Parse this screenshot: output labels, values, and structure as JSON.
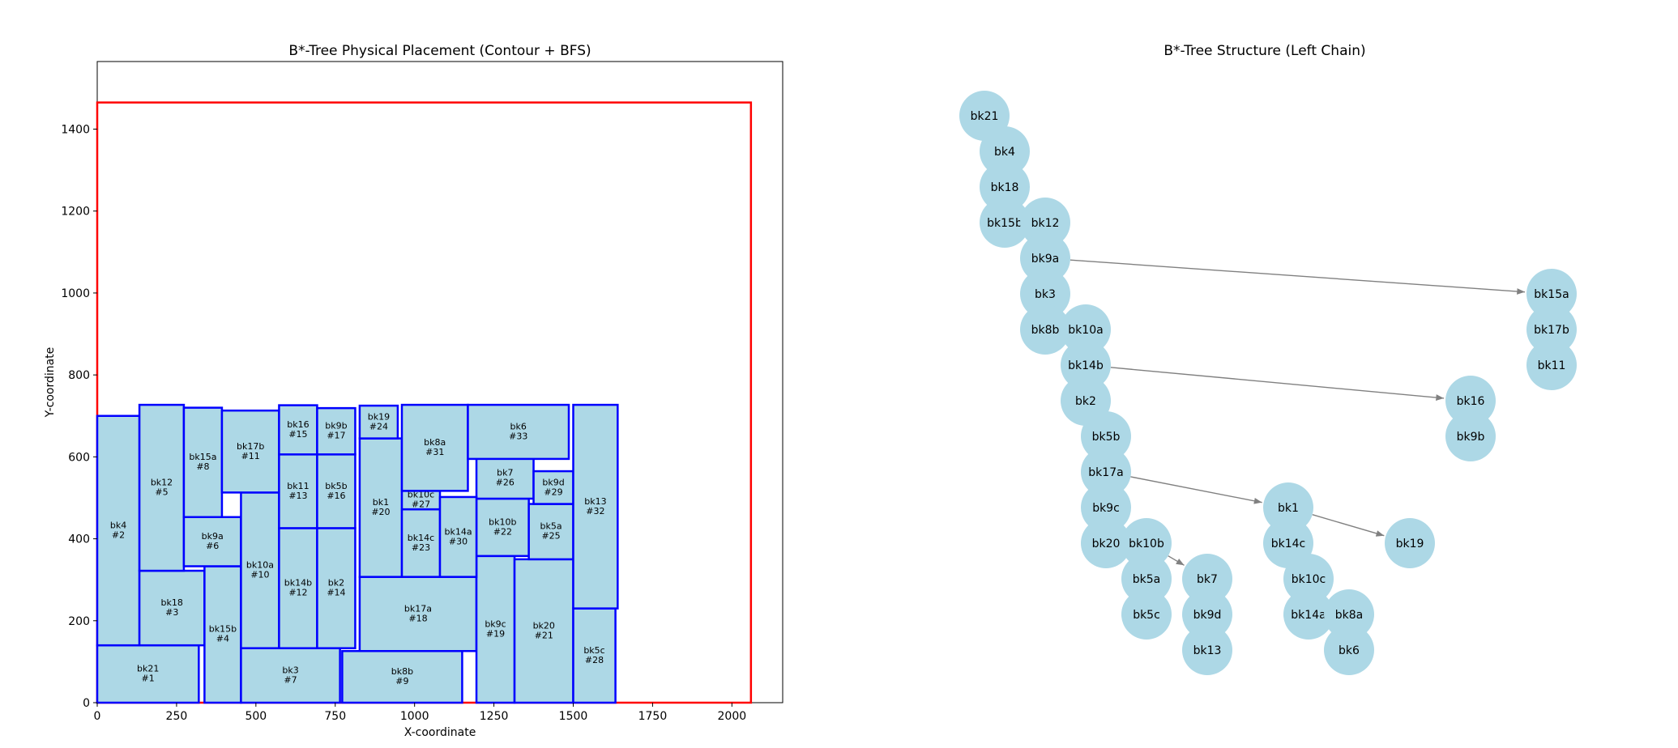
{
  "left": {
    "title": "B*-Tree Physical Placement (Contour + BFS)",
    "xlabel": "X-coordinate",
    "ylabel": "Y-coordinate",
    "xticks": [
      0,
      250,
      500,
      750,
      1000,
      1250,
      1500,
      1750,
      2000
    ],
    "yticks": [
      0,
      200,
      400,
      600,
      800,
      1000,
      1200,
      1400
    ],
    "xlim": [
      0,
      2160
    ],
    "ylim": [
      0,
      1565
    ],
    "outline": {
      "w": 2060,
      "h": 1465,
      "color": "#ff0000"
    },
    "block_fill": "#add8e6",
    "block_edge": "#0000ff",
    "blocks": [
      {
        "name": "bk21",
        "idx": "#1",
        "x": 0,
        "y": 0,
        "w": 320,
        "h": 140
      },
      {
        "name": "bk4",
        "idx": "#2",
        "x": 0,
        "y": 140,
        "w": 133,
        "h": 560
      },
      {
        "name": "bk18",
        "idx": "#3",
        "x": 133,
        "y": 140,
        "w": 205,
        "h": 182
      },
      {
        "name": "bk15b",
        "idx": "#4",
        "x": 338,
        "y": 0,
        "w": 115,
        "h": 333
      },
      {
        "name": "bk12",
        "idx": "#5",
        "x": 133,
        "y": 322,
        "w": 140,
        "h": 405
      },
      {
        "name": "bk9a",
        "idx": "#6",
        "x": 273,
        "y": 333,
        "w": 180,
        "h": 120
      },
      {
        "name": "bk3",
        "idx": "#7",
        "x": 453,
        "y": 0,
        "w": 312,
        "h": 133
      },
      {
        "name": "bk15a",
        "idx": "#8",
        "x": 273,
        "y": 453,
        "w": 120,
        "h": 267
      },
      {
        "name": "bk8b",
        "idx": "#9",
        "x": 772,
        "y": 0,
        "w": 378,
        "h": 126
      },
      {
        "name": "bk10a",
        "idx": "#10",
        "x": 453,
        "y": 133,
        "w": 120,
        "h": 380
      },
      {
        "name": "bk17b",
        "idx": "#11",
        "x": 393,
        "y": 513,
        "w": 180,
        "h": 200
      },
      {
        "name": "bk14b",
        "idx": "#12",
        "x": 573,
        "y": 133,
        "w": 120,
        "h": 293
      },
      {
        "name": "bk11",
        "idx": "#13",
        "x": 573,
        "y": 426,
        "w": 120,
        "h": 180
      },
      {
        "name": "bk2",
        "idx": "#14",
        "x": 693,
        "y": 133,
        "w": 120,
        "h": 293
      },
      {
        "name": "bk16",
        "idx": "#15",
        "x": 573,
        "y": 606,
        "w": 120,
        "h": 120
      },
      {
        "name": "bk5b",
        "idx": "#16",
        "x": 693,
        "y": 426,
        "w": 120,
        "h": 180
      },
      {
        "name": "bk9b",
        "idx": "#17",
        "x": 693,
        "y": 606,
        "w": 120,
        "h": 113
      },
      {
        "name": "bk17a",
        "idx": "#18",
        "x": 827,
        "y": 126,
        "w": 368,
        "h": 181
      },
      {
        "name": "bk9c",
        "idx": "#19",
        "x": 1195,
        "y": 0,
        "w": 120,
        "h": 358
      },
      {
        "name": "bk1",
        "idx": "#20",
        "x": 827,
        "y": 307,
        "w": 133,
        "h": 338
      },
      {
        "name": "bk20",
        "idx": "#21",
        "x": 1315,
        "y": 0,
        "w": 185,
        "h": 350
      },
      {
        "name": "bk10b",
        "idx": "#22",
        "x": 1195,
        "y": 358,
        "w": 165,
        "h": 140
      },
      {
        "name": "bk14c",
        "idx": "#23",
        "x": 960,
        "y": 307,
        "w": 120,
        "h": 165
      },
      {
        "name": "bk19",
        "idx": "#24",
        "x": 827,
        "y": 645,
        "w": 120,
        "h": 80
      },
      {
        "name": "bk5a",
        "idx": "#25",
        "x": 1360,
        "y": 350,
        "w": 140,
        "h": 135
      },
      {
        "name": "bk7",
        "idx": "#26",
        "x": 1195,
        "y": 498,
        "w": 180,
        "h": 100
      },
      {
        "name": "bk10c",
        "idx": "#27",
        "x": 960,
        "y": 472,
        "w": 120,
        "h": 45
      },
      {
        "name": "bk5c",
        "idx": "#28",
        "x": 1500,
        "y": 0,
        "w": 133,
        "h": 230
      },
      {
        "name": "bk9d",
        "idx": "#29",
        "x": 1375,
        "y": 485,
        "w": 125,
        "h": 80
      },
      {
        "name": "bk14a",
        "idx": "#30",
        "x": 1080,
        "y": 307,
        "w": 115,
        "h": 195
      },
      {
        "name": "bk8a",
        "idx": "#31",
        "x": 960,
        "y": 517,
        "w": 208,
        "h": 210
      },
      {
        "name": "bk13",
        "idx": "#32",
        "x": 1500,
        "y": 230,
        "w": 140,
        "h": 497
      },
      {
        "name": "bk6",
        "idx": "#33",
        "x": 1168,
        "y": 595,
        "w": 318,
        "h": 132
      }
    ]
  },
  "right": {
    "title": "B*-Tree Structure (Left Chain)",
    "node_color": "#add8e6",
    "edge_color": "#808080",
    "nodes": [
      {
        "label": "bk21",
        "x": -3,
        "y": 1
      },
      {
        "label": "bk4",
        "x": -2.5,
        "y": 0
      },
      {
        "label": "bk18",
        "x": -2.5,
        "y": -1
      },
      {
        "label": "bk15b",
        "x": -2.5,
        "y": -2
      },
      {
        "label": "bk12",
        "x": -1.5,
        "y": -2
      },
      {
        "label": "bk9a",
        "x": -1.5,
        "y": -3
      },
      {
        "label": "bk15a",
        "x": 11,
        "y": -4
      },
      {
        "label": "bk3",
        "x": -1.5,
        "y": -4
      },
      {
        "label": "bk17b",
        "x": 11,
        "y": -5
      },
      {
        "label": "bk8b",
        "x": -1.5,
        "y": -5
      },
      {
        "label": "bk10a",
        "x": -0.5,
        "y": -5
      },
      {
        "label": "bk14b",
        "x": -0.5,
        "y": -6
      },
      {
        "label": "bk11",
        "x": 11,
        "y": -6
      },
      {
        "label": "bk2",
        "x": -0.5,
        "y": -7
      },
      {
        "label": "bk16",
        "x": 9,
        "y": -7
      },
      {
        "label": "bk5b",
        "x": 0,
        "y": -8
      },
      {
        "label": "bk9b",
        "x": 9,
        "y": -8
      },
      {
        "label": "bk17a",
        "x": 0,
        "y": -9
      },
      {
        "label": "bk9c",
        "x": 0,
        "y": -10
      },
      {
        "label": "bk1",
        "x": 4.5,
        "y": -10
      },
      {
        "label": "bk20",
        "x": 0,
        "y": -11
      },
      {
        "label": "bk10b",
        "x": 1,
        "y": -11
      },
      {
        "label": "bk14c",
        "x": 4.5,
        "y": -11
      },
      {
        "label": "bk19",
        "x": 7.5,
        "y": -11
      },
      {
        "label": "bk5a",
        "x": 1,
        "y": -12
      },
      {
        "label": "bk7",
        "x": 2.5,
        "y": -12
      },
      {
        "label": "bk10c",
        "x": 5,
        "y": -12
      },
      {
        "label": "bk5c",
        "x": 1,
        "y": -13
      },
      {
        "label": "bk9d",
        "x": 2.5,
        "y": -13
      },
      {
        "label": "bk14a",
        "x": 5,
        "y": -13
      },
      {
        "label": "bk8a",
        "x": 6,
        "y": -13
      },
      {
        "label": "bk13",
        "x": 2.5,
        "y": -14
      },
      {
        "label": "bk6",
        "x": 6,
        "y": -14
      }
    ],
    "edges": [
      [
        "bk9a",
        "bk15a"
      ],
      [
        "bk14b",
        "bk16"
      ],
      [
        "bk17a",
        "bk1"
      ],
      [
        "bk1",
        "bk19"
      ],
      [
        "bk10b",
        "bk7"
      ]
    ]
  }
}
